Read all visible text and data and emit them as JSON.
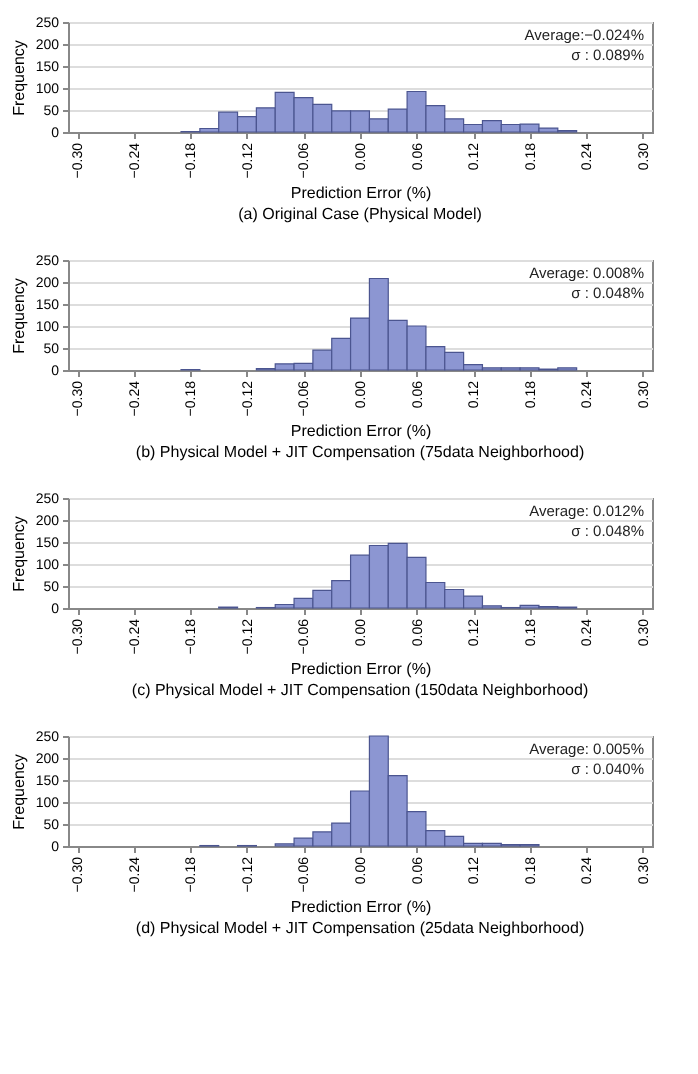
{
  "chart_data": [
    {
      "type": "histogram",
      "title": "(a) Original Case (Physical Model)",
      "xlabel": "Prediction Error (%)",
      "ylabel": "Frequency",
      "annotations": [
        "Average:−0.024%",
        "σ :  0.089%"
      ],
      "bins": [
        -0.31,
        -0.29,
        -0.27,
        -0.25,
        -0.23,
        -0.21,
        -0.19,
        -0.17,
        -0.15,
        -0.13,
        -0.11,
        -0.09,
        -0.07,
        -0.05,
        -0.03,
        -0.01,
        0.01,
        0.03,
        0.05,
        0.07,
        0.09,
        0.11,
        0.13,
        0.15,
        0.17,
        0.19,
        0.21,
        0.23,
        0.25,
        0.27,
        0.29,
        0.31
      ],
      "values": [
        0,
        0,
        0,
        0,
        0,
        0,
        1,
        8,
        45,
        35,
        55,
        90,
        78,
        63,
        48,
        48,
        30,
        52,
        92,
        60,
        30,
        17,
        26,
        17,
        18,
        9,
        3,
        0,
        0,
        0,
        0
      ],
      "color": "#8c96d2",
      "xlim": [
        -0.31,
        0.31
      ],
      "xticks": [
        {
          "value": -0.3,
          "label": "−0.30"
        },
        {
          "value": -0.24,
          "label": "−0.24"
        },
        {
          "value": -0.18,
          "label": "−0.18"
        },
        {
          "value": -0.12,
          "label": "−0.12"
        },
        {
          "value": -0.06,
          "label": "−0.06"
        },
        {
          "value": 0,
          "label": "0.00"
        },
        {
          "value": 0.06,
          "label": "0.06"
        },
        {
          "value": 0.12,
          "label": "0.12"
        },
        {
          "value": 0.18,
          "label": "0.18"
        },
        {
          "value": 0.24,
          "label": "0.24"
        },
        {
          "value": 0.3,
          "label": "0.30"
        }
      ],
      "ylim": [
        0,
        250
      ],
      "yticks": [
        0,
        50,
        100,
        150,
        200,
        250
      ],
      "grid": "y"
    },
    {
      "type": "histogram",
      "title": "(b) Physical Model + JIT Compensation (75data Neighborhood)",
      "xlabel": "Prediction Error (%)",
      "ylabel": "Frequency",
      "annotations": [
        "Average:  0.008%",
        "σ :  0.048%"
      ],
      "bins": [
        -0.31,
        -0.29,
        -0.27,
        -0.25,
        -0.23,
        -0.21,
        -0.19,
        -0.17,
        -0.15,
        -0.13,
        -0.11,
        -0.09,
        -0.07,
        -0.05,
        -0.03,
        -0.01,
        0.01,
        0.03,
        0.05,
        0.07,
        0.09,
        0.11,
        0.13,
        0.15,
        0.17,
        0.19,
        0.21,
        0.23,
        0.25,
        0.27,
        0.29,
        0.31
      ],
      "values": [
        0,
        0,
        0,
        0,
        0,
        0,
        1,
        0,
        0,
        0,
        3,
        14,
        15,
        45,
        72,
        118,
        208,
        113,
        100,
        53,
        40,
        12,
        5,
        5,
        5,
        2,
        5,
        0,
        0,
        0,
        0
      ],
      "color": "#8c96d2",
      "xlim": [
        -0.31,
        0.31
      ],
      "xticks": [
        {
          "value": -0.3,
          "label": "−0.30"
        },
        {
          "value": -0.24,
          "label": "−0.24"
        },
        {
          "value": -0.18,
          "label": "−0.18"
        },
        {
          "value": -0.12,
          "label": "−0.12"
        },
        {
          "value": -0.06,
          "label": "−0.06"
        },
        {
          "value": 0,
          "label": "0.00"
        },
        {
          "value": 0.06,
          "label": "0.06"
        },
        {
          "value": 0.12,
          "label": "0.12"
        },
        {
          "value": 0.18,
          "label": "0.18"
        },
        {
          "value": 0.24,
          "label": "0.24"
        },
        {
          "value": 0.3,
          "label": "0.30"
        }
      ],
      "ylim": [
        0,
        250
      ],
      "yticks": [
        0,
        50,
        100,
        150,
        200,
        250
      ],
      "grid": "y"
    },
    {
      "type": "histogram",
      "title": "(c) Physical Model + JIT Compensation (150data Neighborhood)",
      "xlabel": "Prediction Error (%)",
      "ylabel": "Frequency",
      "annotations": [
        "Average:  0.012%",
        "σ :  0.048%"
      ],
      "bins": [
        -0.31,
        -0.29,
        -0.27,
        -0.25,
        -0.23,
        -0.21,
        -0.19,
        -0.17,
        -0.15,
        -0.13,
        -0.11,
        -0.09,
        -0.07,
        -0.05,
        -0.03,
        -0.01,
        0.01,
        0.03,
        0.05,
        0.07,
        0.09,
        0.11,
        0.13,
        0.15,
        0.17,
        0.19,
        0.21,
        0.23,
        0.25,
        0.27,
        0.29,
        0.31
      ],
      "values": [
        0,
        0,
        0,
        0,
        0,
        0,
        0,
        0,
        2,
        0,
        1,
        8,
        22,
        40,
        62,
        120,
        142,
        147,
        115,
        58,
        42,
        27,
        5,
        1,
        6,
        3,
        2,
        0,
        0,
        0,
        0
      ],
      "color": "#8c96d2",
      "xlim": [
        -0.31,
        0.31
      ],
      "xticks": [
        {
          "value": -0.3,
          "label": "−0.30"
        },
        {
          "value": -0.24,
          "label": "−0.24"
        },
        {
          "value": -0.18,
          "label": "−0.18"
        },
        {
          "value": -0.12,
          "label": "−0.12"
        },
        {
          "value": -0.06,
          "label": "−0.06"
        },
        {
          "value": 0,
          "label": "0.00"
        },
        {
          "value": 0.06,
          "label": "0.06"
        },
        {
          "value": 0.12,
          "label": "0.12"
        },
        {
          "value": 0.18,
          "label": "0.18"
        },
        {
          "value": 0.24,
          "label": "0.24"
        },
        {
          "value": 0.3,
          "label": "0.30"
        }
      ],
      "ylim": [
        0,
        250
      ],
      "yticks": [
        0,
        50,
        100,
        150,
        200,
        250
      ],
      "grid": "y"
    },
    {
      "type": "histogram",
      "title": "(d) Physical Model + JIT Compensation (25data Neighborhood)",
      "xlabel": "Prediction Error (%)",
      "ylabel": "Frequency",
      "annotations": [
        "Average:  0.005%",
        "σ :  0.040%"
      ],
      "bins": [
        -0.31,
        -0.29,
        -0.27,
        -0.25,
        -0.23,
        -0.21,
        -0.19,
        -0.17,
        -0.15,
        -0.13,
        -0.11,
        -0.09,
        -0.07,
        -0.05,
        -0.03,
        -0.01,
        0.01,
        0.03,
        0.05,
        0.07,
        0.09,
        0.11,
        0.13,
        0.15,
        0.17,
        0.19,
        0.21,
        0.23,
        0.25,
        0.27,
        0.29,
        0.31
      ],
      "values": [
        0,
        0,
        0,
        0,
        0,
        0,
        0,
        1,
        0,
        1,
        0,
        5,
        18,
        32,
        52,
        125,
        250,
        160,
        78,
        35,
        22,
        6,
        6,
        3,
        3,
        0,
        0,
        0,
        0,
        0,
        0
      ],
      "color": "#8c96d2",
      "xlim": [
        -0.31,
        0.31
      ],
      "xticks": [
        {
          "value": -0.3,
          "label": "−0.30"
        },
        {
          "value": -0.24,
          "label": "−0.24"
        },
        {
          "value": -0.18,
          "label": "−0.18"
        },
        {
          "value": -0.12,
          "label": "−0.12"
        },
        {
          "value": -0.06,
          "label": "−0.06"
        },
        {
          "value": 0,
          "label": "0.00"
        },
        {
          "value": 0.06,
          "label": "0.06"
        },
        {
          "value": 0.12,
          "label": "0.12"
        },
        {
          "value": 0.18,
          "label": "0.18"
        },
        {
          "value": 0.24,
          "label": "0.24"
        },
        {
          "value": 0.3,
          "label": "0.30"
        }
      ],
      "ylim": [
        0,
        250
      ],
      "yticks": [
        0,
        50,
        100,
        150,
        200,
        250
      ],
      "grid": "y"
    }
  ]
}
